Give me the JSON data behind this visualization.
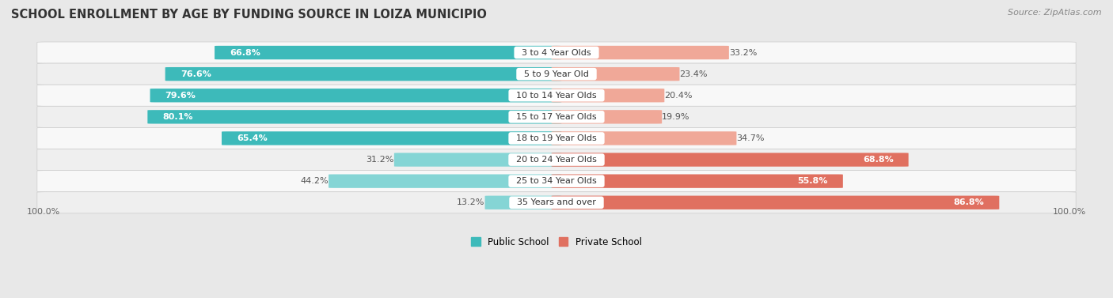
{
  "title": "SCHOOL ENROLLMENT BY AGE BY FUNDING SOURCE IN LOIZA MUNICIPIO",
  "source": "Source: ZipAtlas.com",
  "categories": [
    "3 to 4 Year Olds",
    "5 to 9 Year Old",
    "10 to 14 Year Olds",
    "15 to 17 Year Olds",
    "18 to 19 Year Olds",
    "20 to 24 Year Olds",
    "25 to 34 Year Olds",
    "35 Years and over"
  ],
  "public_values": [
    66.8,
    76.6,
    79.6,
    80.1,
    65.4,
    31.2,
    44.2,
    13.2
  ],
  "private_values": [
    33.2,
    23.4,
    20.4,
    19.9,
    34.7,
    68.8,
    55.8,
    86.8
  ],
  "public_color_dark": "#3DBABA",
  "public_color_light": "#85D5D5",
  "private_color_dark": "#E07060",
  "private_color_light": "#F0A898",
  "bg_color": "#e8e8e8",
  "row_bg_color": "#f5f5f5",
  "title_fontsize": 10.5,
  "label_fontsize": 8,
  "value_fontsize": 8,
  "source_fontsize": 8,
  "legend_fontsize": 8.5,
  "bar_height": 0.62,
  "x_left_label": "100.0%",
  "x_right_label": "100.0%",
  "max_val": 100.0
}
